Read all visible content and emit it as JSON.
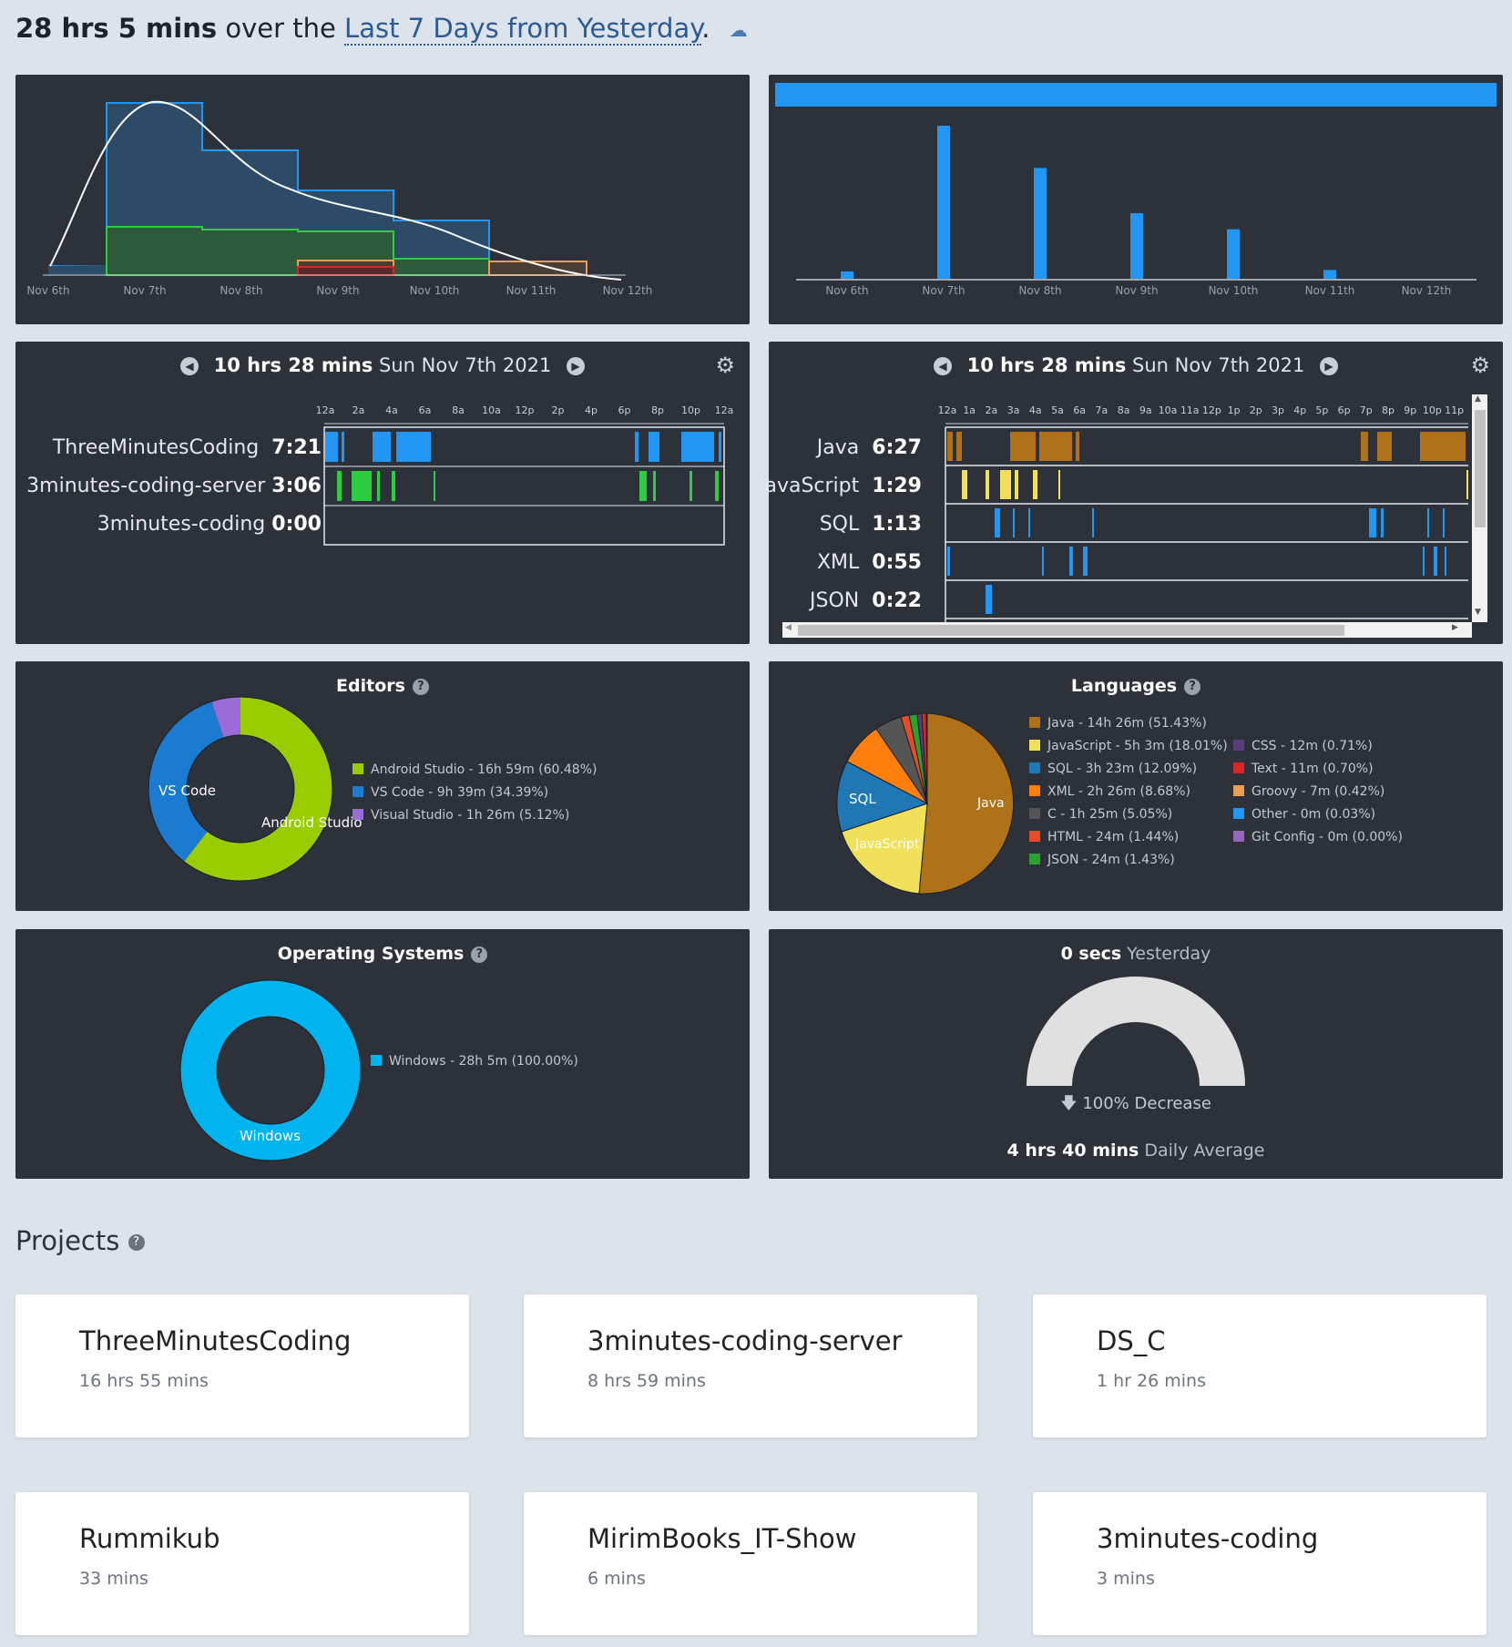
{
  "header": {
    "total": "28 hrs 5 mins",
    "mid": "over the",
    "range": "Last 7 Days from Yesterday",
    "dot": "."
  },
  "activity_chart": {
    "ticks": [
      "Nov 6th",
      "Nov 7th",
      "Nov 8th",
      "Nov 9th",
      "Nov 10th",
      "Nov 11th",
      "Nov 12th"
    ]
  },
  "daily_chart": {
    "ticks": [
      "Nov 6th",
      "Nov 7th",
      "Nov 8th",
      "Nov 9th",
      "Nov 10th",
      "Nov 11th",
      "Nov 12th"
    ]
  },
  "projects_timeline": {
    "total": "10 hrs 28 mins",
    "date": "Sun Nov 7th 2021",
    "hours": [
      "12a",
      "2a",
      "4a",
      "6a",
      "8a",
      "10a",
      "12p",
      "2p",
      "4p",
      "6p",
      "8p",
      "10p",
      "12a"
    ],
    "rows": [
      {
        "name": "ThreeMinutesCoding",
        "time": "7:21"
      },
      {
        "name": "3minutes-coding-server",
        "time": "3:06"
      },
      {
        "name": "3minutes-coding",
        "time": "0:00"
      }
    ]
  },
  "languages_timeline": {
    "total": "10 hrs 28 mins",
    "date": "Sun Nov 7th 2021",
    "hours": [
      "12a",
      "1a",
      "2a",
      "3a",
      "4a",
      "5a",
      "6a",
      "7a",
      "8a",
      "9a",
      "10a",
      "11a",
      "12p",
      "1p",
      "2p",
      "3p",
      "4p",
      "5p",
      "6p",
      "7p",
      "8p",
      "9p",
      "10p",
      "11p"
    ],
    "rows": [
      {
        "name": "Java",
        "time": "6:27"
      },
      {
        "name": "JavaScript",
        "time": "1:29"
      },
      {
        "name": "SQL",
        "time": "1:13"
      },
      {
        "name": "XML",
        "time": "0:55"
      },
      {
        "name": "JSON",
        "time": "0:22"
      }
    ]
  },
  "editors": {
    "title": "Editors",
    "labels": {
      "vscode": "VS Code",
      "android": "Android Studio"
    },
    "legend": [
      {
        "text": "Android Studio - 16h 59m (60.48%)",
        "color": "#9acd00"
      },
      {
        "text": "VS Code - 9h 39m (34.39%)",
        "color": "#1a7bd1"
      },
      {
        "text": "Visual Studio - 1h 26m (5.12%)",
        "color": "#9b6bd8"
      }
    ]
  },
  "languages": {
    "title": "Languages",
    "labels": {
      "java": "Java",
      "sql": "SQL",
      "javascript": "JavaScript"
    },
    "legend_left": [
      {
        "text": "Java - 14h 26m (51.43%)",
        "color": "#b07219"
      },
      {
        "text": "JavaScript - 5h 3m (18.01%)",
        "color": "#f1e05a"
      },
      {
        "text": "SQL - 3h 23m (12.09%)",
        "color": "#1f78b4"
      },
      {
        "text": "XML - 2h 26m (8.68%)",
        "color": "#ff7f0e"
      },
      {
        "text": "C - 1h 25m (5.05%)",
        "color": "#555555"
      },
      {
        "text": "HTML - 24m (1.44%)",
        "color": "#e34c26"
      },
      {
        "text": "JSON - 24m (1.43%)",
        "color": "#2ca02c"
      }
    ],
    "legend_right": [
      {
        "text": "CSS - 12m (0.71%)",
        "color": "#563d7c"
      },
      {
        "text": "Text - 11m (0.70%)",
        "color": "#d62728"
      },
      {
        "text": "Groovy - 7m (0.42%)",
        "color": "#e69f56"
      },
      {
        "text": "Other - 0m (0.03%)",
        "color": "#2196f3"
      },
      {
        "text": "Git Config - 0m (0.00%)",
        "color": "#9467bd"
      }
    ]
  },
  "os": {
    "title": "Operating Systems",
    "label": "Windows",
    "legend": [
      {
        "text": "Windows - 28h 5m (100.00%)",
        "color": "#00b4ef"
      }
    ]
  },
  "yesterday": {
    "value": "0 secs",
    "label": "Yesterday",
    "change": "100% Decrease",
    "avg_value": "4 hrs 40 mins",
    "avg_label": "Daily Average"
  },
  "projects": {
    "title": "Projects",
    "items": [
      {
        "name": "ThreeMinutesCoding",
        "time": "16 hrs 55 mins"
      },
      {
        "name": "3minutes-coding-server",
        "time": "8 hrs 59 mins"
      },
      {
        "name": "DS_C",
        "time": "1 hr 26 mins"
      },
      {
        "name": "Rummikub",
        "time": "33 mins"
      },
      {
        "name": "MirimBooks_IT-Show",
        "time": "6 mins"
      },
      {
        "name": "3minutes-coding",
        "time": "3 mins"
      }
    ]
  }
}
